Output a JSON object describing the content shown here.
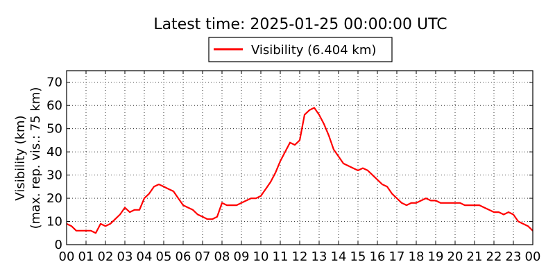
{
  "chart_data": {
    "type": "line",
    "title": "Latest time: 2025-01-25 00:00:00 UTC",
    "ylabel_line1": "Visibility (km)",
    "ylabel_line2": "(max. rep. vis.: 75 km)",
    "xlabel": "",
    "legend": {
      "placement": "top-center",
      "label": "Visibility (6.404 km)"
    },
    "grid": true,
    "x_unit": "hour",
    "xlim": [
      0,
      24
    ],
    "ylim": [
      0,
      75
    ],
    "x_tick_labels": [
      "00",
      "01",
      "02",
      "03",
      "04",
      "05",
      "06",
      "07",
      "08",
      "09",
      "10",
      "11",
      "12",
      "13",
      "14",
      "15",
      "16",
      "17",
      "18",
      "19",
      "20",
      "21",
      "22",
      "23",
      "00"
    ],
    "y_ticks": [
      0,
      10,
      20,
      30,
      40,
      50,
      60,
      70
    ],
    "series": [
      {
        "name": "Visibility (6.404 km)",
        "color": "#ff0000",
        "x": [
          0.0,
          0.25,
          0.5,
          0.75,
          1.0,
          1.25,
          1.5,
          1.75,
          2.0,
          2.25,
          2.5,
          2.75,
          3.0,
          3.25,
          3.5,
          3.75,
          4.0,
          4.25,
          4.5,
          4.75,
          5.0,
          5.25,
          5.5,
          5.75,
          6.0,
          6.25,
          6.5,
          6.75,
          7.0,
          7.25,
          7.5,
          7.75,
          8.0,
          8.25,
          8.5,
          8.75,
          9.0,
          9.25,
          9.5,
          9.75,
          10.0,
          10.25,
          10.5,
          10.75,
          11.0,
          11.25,
          11.5,
          11.75,
          12.0,
          12.25,
          12.5,
          12.75,
          13.0,
          13.25,
          13.5,
          13.75,
          14.0,
          14.25,
          14.5,
          14.75,
          15.0,
          15.25,
          15.5,
          15.75,
          16.0,
          16.25,
          16.5,
          16.75,
          17.0,
          17.25,
          17.5,
          17.75,
          18.0,
          18.25,
          18.5,
          18.75,
          19.0,
          19.25,
          19.5,
          19.75,
          20.0,
          20.25,
          20.5,
          20.75,
          21.0,
          21.25,
          21.5,
          21.75,
          22.0,
          22.25,
          22.5,
          22.75,
          23.0,
          23.25,
          23.5,
          23.75,
          24.0
        ],
        "values": [
          9,
          8,
          6,
          6,
          6,
          6,
          5,
          9,
          8,
          9,
          11,
          13,
          16,
          14,
          15,
          15,
          20,
          22,
          25,
          26,
          25,
          24,
          23,
          20,
          17,
          16,
          15,
          13,
          12,
          11,
          11,
          12,
          18,
          17,
          17,
          17,
          18,
          19,
          20,
          20,
          21,
          24,
          27,
          31,
          36,
          40,
          44,
          43,
          45,
          56,
          58,
          59,
          56,
          52,
          47,
          41,
          38,
          35,
          34,
          33,
          32,
          33,
          32,
          30,
          28,
          26,
          25,
          22,
          20,
          18,
          17,
          18,
          18,
          19,
          20,
          19,
          19,
          18,
          18,
          18,
          18,
          18,
          17,
          17,
          17,
          17,
          16,
          15,
          14,
          14,
          13,
          14,
          13,
          10,
          9,
          8,
          6
        ]
      }
    ]
  }
}
